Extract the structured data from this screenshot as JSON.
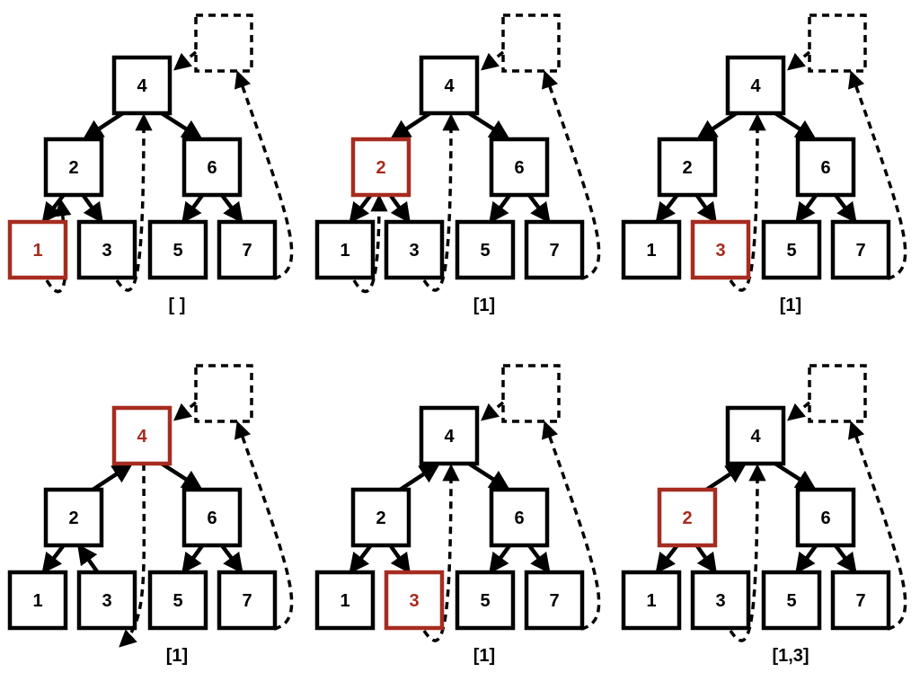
{
  "colors": {
    "highlight": "#a62c20",
    "default": "#000000"
  },
  "tree": {
    "nodes": [
      "1",
      "2",
      "3",
      "4",
      "5",
      "6",
      "7"
    ]
  },
  "panels": [
    {
      "highlighted": "1",
      "output": "[ ]"
    },
    {
      "highlighted": "2",
      "output": "[1]"
    },
    {
      "highlighted": "3",
      "output": "[1]"
    },
    {
      "highlighted": "4",
      "output": "[1]"
    },
    {
      "highlighted": "3",
      "output": "[1]"
    },
    {
      "highlighted": "2",
      "output": "[1,3]"
    }
  ]
}
